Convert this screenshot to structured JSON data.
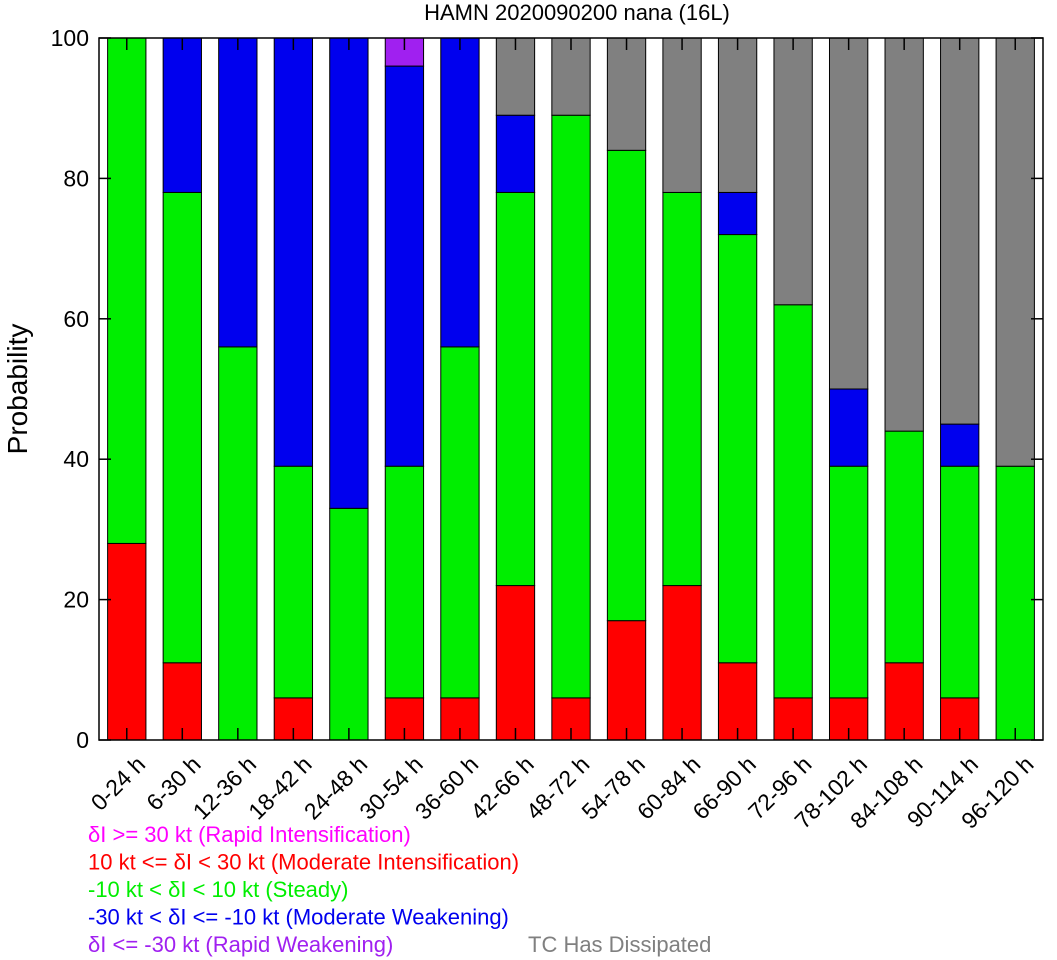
{
  "chart_data": {
    "type": "bar",
    "stacked": true,
    "title": "HAMN 2020090200 nana (16L)",
    "xlabel": "",
    "ylabel": "Probability",
    "ylim": [
      0,
      100
    ],
    "yticks": [
      "0",
      "20",
      "40",
      "60",
      "80",
      "100"
    ],
    "grid": false,
    "categories": [
      "0-24 h",
      "6-30 h",
      "12-36 h",
      "18-42 h",
      "24-48 h",
      "30-54 h",
      "36-60 h",
      "42-66 h",
      "48-72 h",
      "54-78 h",
      "60-84 h",
      "66-90 h",
      "72-96 h",
      "78-102 h",
      "84-108 h",
      "90-114 h",
      "96-120 h"
    ],
    "series": [
      {
        "key": "mi",
        "color": "#ff0000",
        "values": [
          28,
          11,
          0,
          6,
          0,
          6,
          6,
          22,
          6,
          17,
          22,
          11,
          6,
          6,
          11,
          6,
          0
        ]
      },
      {
        "key": "st",
        "color": "#00ee00",
        "values": [
          72,
          67,
          56,
          33,
          33,
          33,
          50,
          56,
          83,
          67,
          56,
          61,
          56,
          33,
          33,
          33,
          39
        ]
      },
      {
        "key": "mw",
        "color": "#0000ee",
        "values": [
          0,
          22,
          44,
          61,
          67,
          57,
          44,
          11,
          0,
          0,
          0,
          6,
          0,
          11,
          0,
          6,
          0
        ]
      },
      {
        "key": "rw",
        "color": "#a020f0",
        "values": [
          0,
          0,
          0,
          0,
          0,
          4,
          0,
          0,
          0,
          0,
          0,
          0,
          0,
          0,
          0,
          0,
          0
        ]
      },
      {
        "key": "ri",
        "color": "#ff00ff",
        "values": [
          0,
          0,
          0,
          0,
          0,
          0,
          0,
          0,
          0,
          0,
          0,
          0,
          0,
          0,
          0,
          0,
          0
        ]
      },
      {
        "key": "dissipated",
        "color": "#808080",
        "values": [
          0,
          0,
          0,
          0,
          0,
          0,
          0,
          11,
          11,
          16,
          22,
          22,
          38,
          50,
          56,
          55,
          61
        ]
      }
    ],
    "legend": [
      {
        "key": "ri",
        "text": "δI >= 30 kt (Rapid Intensification)",
        "color": "#ff00ff"
      },
      {
        "key": "mi",
        "text": "10 kt <= δI < 30 kt (Moderate Intensification)",
        "color": "#ff0000"
      },
      {
        "key": "st",
        "text": "-10 kt < δI < 10 kt (Steady)",
        "color": "#00ee00"
      },
      {
        "key": "mw",
        "text": "-30 kt < δI <= -10 kt (Moderate Weakening)",
        "color": "#0000ee"
      },
      {
        "key": "rw",
        "text": "δI <= -30 kt (Rapid Weakening)",
        "color": "#a020f0"
      },
      {
        "key": "dissipated",
        "text": "TC Has Dissipated",
        "color": "#808080"
      }
    ]
  }
}
